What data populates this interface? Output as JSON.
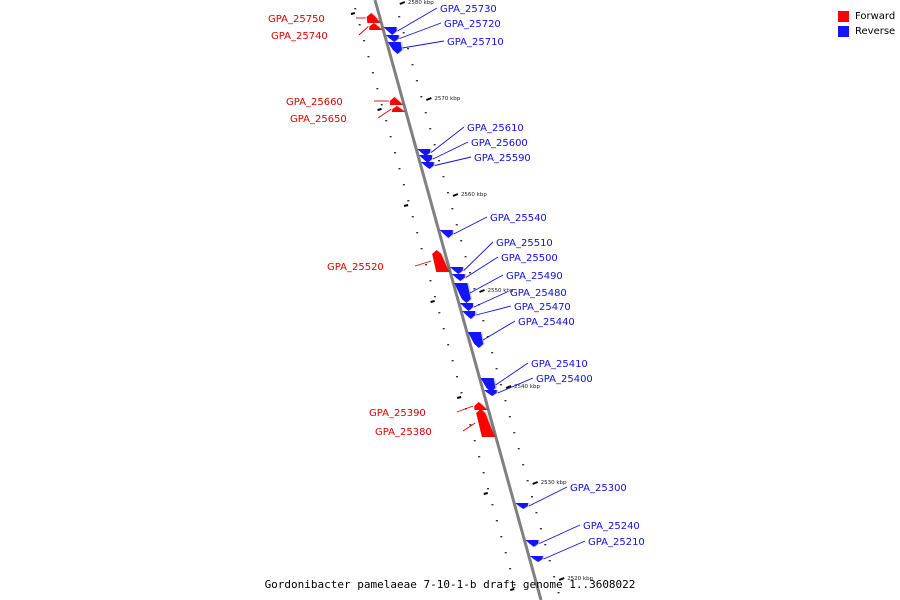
{
  "colors": {
    "forward": "#ff0000",
    "reverse": "#1414ff",
    "backbone": "#808080",
    "label_forward": "#e00000",
    "label_reverse": "#1010e6"
  },
  "legend": [
    {
      "label": "Forward",
      "color": "#ff0000"
    },
    {
      "label": "Reverse",
      "color": "#1414ff"
    }
  ],
  "caption": "Gordonibacter pamelaeae 7-10-1-b draft genome 1..3608022",
  "ticks": [
    {
      "kbp": 2580,
      "label": "2580 kbp"
    },
    {
      "kbp": 2570,
      "label": "2570 kbp"
    },
    {
      "kbp": 2560,
      "label": "2560 kbp"
    },
    {
      "kbp": 2550,
      "label": "2550 kbp"
    },
    {
      "kbp": 2540,
      "label": "2540 kbp"
    },
    {
      "kbp": 2530,
      "label": "2530 kbp"
    },
    {
      "kbp": 2520,
      "label": "2520 kbp"
    }
  ],
  "genes": [
    {
      "name": "GPA_25750",
      "strand": "forward"
    },
    {
      "name": "GPA_25740",
      "strand": "forward"
    },
    {
      "name": "GPA_25730",
      "strand": "reverse"
    },
    {
      "name": "GPA_25720",
      "strand": "reverse"
    },
    {
      "name": "GPA_25710",
      "strand": "reverse"
    },
    {
      "name": "GPA_25660",
      "strand": "forward"
    },
    {
      "name": "GPA_25650",
      "strand": "forward"
    },
    {
      "name": "GPA_25610",
      "strand": "reverse"
    },
    {
      "name": "GPA_25600",
      "strand": "reverse"
    },
    {
      "name": "GPA_25590",
      "strand": "reverse"
    },
    {
      "name": "GPA_25540",
      "strand": "reverse"
    },
    {
      "name": "GPA_25520",
      "strand": "forward"
    },
    {
      "name": "GPA_25510",
      "strand": "reverse"
    },
    {
      "name": "GPA_25500",
      "strand": "reverse"
    },
    {
      "name": "GPA_25490",
      "strand": "reverse"
    },
    {
      "name": "GPA_25480",
      "strand": "reverse"
    },
    {
      "name": "GPA_25470",
      "strand": "reverse"
    },
    {
      "name": "GPA_25440",
      "strand": "reverse"
    },
    {
      "name": "GPA_25410",
      "strand": "reverse"
    },
    {
      "name": "GPA_25400",
      "strand": "reverse"
    },
    {
      "name": "GPA_25390",
      "strand": "forward"
    },
    {
      "name": "GPA_25380",
      "strand": "forward"
    },
    {
      "name": "GPA_25300",
      "strand": "reverse"
    },
    {
      "name": "GPA_25240",
      "strand": "reverse"
    },
    {
      "name": "GPA_25210",
      "strand": "reverse"
    }
  ]
}
